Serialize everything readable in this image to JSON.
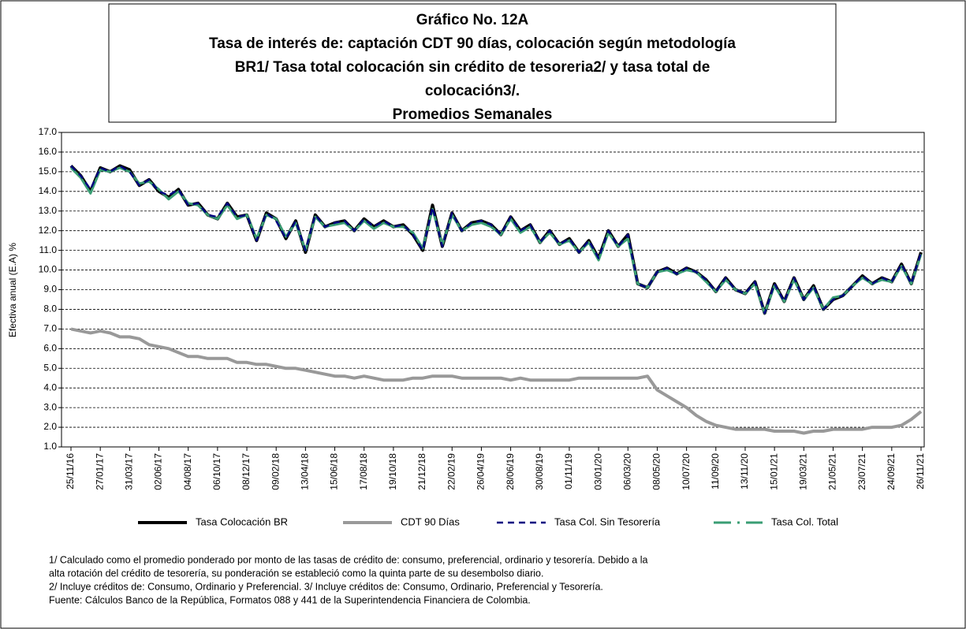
{
  "chart_data": {
    "type": "line",
    "title": [
      "Gráfico No. 12A",
      "Tasa de interés de: captación CDT 90 días,  colocación según metodología",
      "BR1/  Tasa total colocación sin crédito de tesoreria2/ y tasa total de",
      "colocación3/.",
      "Promedios Semanales"
    ],
    "ylabel": "Efectiva anual (E.A) %",
    "ylim": [
      1,
      17
    ],
    "yticks": [
      {
        "value": 1,
        "label": "1.0"
      },
      {
        "value": 2,
        "label": "2.0"
      },
      {
        "value": 3,
        "label": "3.0"
      },
      {
        "value": 4,
        "label": "4.0"
      },
      {
        "value": 5,
        "label": "5.0"
      },
      {
        "value": 6,
        "label": "6.0"
      },
      {
        "value": 7,
        "label": "7.0"
      },
      {
        "value": 8,
        "label": "8.0"
      },
      {
        "value": 9,
        "label": "9.0"
      },
      {
        "value": 10,
        "label": "10.0"
      },
      {
        "value": 11,
        "label": "11.0"
      },
      {
        "value": 12,
        "label": "12.0"
      },
      {
        "value": 13,
        "label": "13.0"
      },
      {
        "value": 14,
        "label": "14.0"
      },
      {
        "value": 15,
        "label": "15.0"
      },
      {
        "value": 16,
        "label": "16.0"
      },
      {
        "value": 17,
        "label": "17.0"
      }
    ],
    "grid": true,
    "categories": [
      "25/11/16",
      null,
      null,
      "27/01/17",
      null,
      null,
      "31/03/17",
      null,
      null,
      "02/06/17",
      null,
      null,
      "04/08/17",
      null,
      null,
      "06/10/17",
      null,
      null,
      "08/12/17",
      null,
      null,
      "09/02/18",
      null,
      null,
      "13/04/18",
      null,
      null,
      "15/06/18",
      null,
      null,
      "17/08/18",
      null,
      null,
      "19/10/18",
      null,
      null,
      "21/12/18",
      null,
      null,
      "22/02/19",
      null,
      null,
      "26/04/19",
      null,
      null,
      "28/06/19",
      null,
      null,
      "30/08/19",
      null,
      null,
      "01/11/19",
      null,
      null,
      "03/01/20",
      null,
      null,
      "06/03/20",
      null,
      null,
      "08/05/20",
      null,
      null,
      "10/07/20",
      null,
      null,
      "11/09/20",
      null,
      null,
      "13/11/20",
      null,
      null,
      "15/01/21",
      null,
      null,
      "19/03/21",
      null,
      null,
      "21/05/21",
      null,
      null,
      "23/07/21",
      null,
      null,
      "24/09/21",
      null,
      null,
      "26/11/21"
    ],
    "series": [
      {
        "name": "Tasa Colocación BR",
        "color": "#000000",
        "values": [
          15.3,
          14.8,
          14.0,
          15.2,
          15.0,
          15.3,
          15.1,
          14.3,
          14.6,
          14.0,
          13.7,
          14.1,
          13.3,
          13.4,
          12.8,
          12.6,
          13.4,
          12.7,
          12.8,
          11.5,
          12.9,
          12.6,
          11.6,
          12.5,
          10.9,
          12.8,
          12.2,
          12.4,
          12.5,
          12.0,
          12.6,
          12.2,
          12.5,
          12.2,
          12.3,
          11.8,
          11.0,
          13.3,
          11.2,
          12.9,
          12.0,
          12.4,
          12.5,
          12.3,
          11.8,
          12.7,
          12.0,
          12.3,
          11.4,
          12.0,
          11.3,
          11.6,
          10.9,
          11.5,
          10.6,
          12.0,
          11.2,
          11.8,
          9.3,
          9.1,
          9.9,
          10.1,
          9.8,
          10.1,
          9.9,
          9.5,
          8.9,
          9.6,
          9.0,
          8.8,
          9.4,
          7.8,
          9.3,
          8.4,
          9.6,
          8.5,
          9.2,
          8.0,
          8.5,
          8.7,
          9.2,
          9.7,
          9.3,
          9.6,
          9.4,
          10.3,
          9.3,
          10.9
        ]
      },
      {
        "name": "CDT 90 Días",
        "color": "#999999",
        "values": [
          7.0,
          6.9,
          6.8,
          6.9,
          6.8,
          6.6,
          6.6,
          6.5,
          6.2,
          6.1,
          6.0,
          5.8,
          5.6,
          5.6,
          5.5,
          5.5,
          5.5,
          5.3,
          5.3,
          5.2,
          5.2,
          5.1,
          5.0,
          5.0,
          4.9,
          4.8,
          4.7,
          4.6,
          4.6,
          4.5,
          4.6,
          4.5,
          4.4,
          4.4,
          4.4,
          4.5,
          4.5,
          4.6,
          4.6,
          4.6,
          4.5,
          4.5,
          4.5,
          4.5,
          4.5,
          4.4,
          4.5,
          4.4,
          4.4,
          4.4,
          4.4,
          4.4,
          4.5,
          4.5,
          4.5,
          4.5,
          4.5,
          4.5,
          4.5,
          4.6,
          3.9,
          3.6,
          3.3,
          3.0,
          2.6,
          2.3,
          2.1,
          2.0,
          1.9,
          1.9,
          1.9,
          1.9,
          1.8,
          1.8,
          1.8,
          1.7,
          1.8,
          1.8,
          1.9,
          1.9,
          1.9,
          1.9,
          2.0,
          2.0,
          2.0,
          2.1,
          2.4,
          2.8
        ]
      },
      {
        "name": "Tasa Col. Sin Tesorería",
        "color": "#000080",
        "values": [
          15.3,
          14.8,
          14.1,
          15.2,
          15.0,
          15.3,
          15.0,
          14.3,
          14.6,
          14.0,
          13.8,
          14.1,
          13.3,
          13.4,
          12.8,
          12.7,
          13.4,
          12.7,
          12.8,
          11.5,
          12.9,
          12.5,
          11.6,
          12.5,
          11.0,
          12.8,
          12.2,
          12.4,
          12.5,
          12.0,
          12.6,
          12.2,
          12.5,
          12.2,
          12.3,
          11.8,
          11.0,
          13.2,
          11.2,
          12.9,
          12.0,
          12.4,
          12.5,
          12.3,
          11.8,
          12.7,
          12.0,
          12.3,
          11.4,
          12.0,
          11.3,
          11.6,
          10.9,
          11.5,
          10.6,
          12.0,
          11.2,
          11.8,
          9.3,
          9.1,
          9.9,
          10.1,
          9.8,
          10.1,
          9.9,
          9.5,
          8.9,
          9.6,
          9.0,
          8.8,
          9.4,
          7.8,
          9.3,
          8.4,
          9.6,
          8.5,
          9.2,
          8.0,
          8.5,
          8.7,
          9.2,
          9.7,
          9.3,
          9.6,
          9.4,
          10.3,
          9.3,
          10.9
        ]
      },
      {
        "name": "Tasa Col. Total",
        "color": "#3a9e74",
        "values": [
          15.2,
          14.7,
          13.9,
          15.1,
          15.0,
          15.2,
          15.0,
          14.4,
          14.5,
          14.1,
          13.6,
          14.0,
          13.4,
          13.3,
          12.8,
          12.6,
          13.3,
          12.6,
          12.8,
          11.6,
          12.8,
          12.6,
          11.7,
          12.4,
          11.0,
          12.7,
          12.2,
          12.3,
          12.4,
          12.0,
          12.5,
          12.1,
          12.4,
          12.2,
          12.2,
          11.9,
          11.1,
          13.1,
          11.3,
          12.8,
          12.0,
          12.3,
          12.4,
          12.2,
          11.8,
          12.6,
          11.9,
          12.2,
          11.4,
          11.9,
          11.3,
          11.5,
          10.9,
          11.4,
          10.5,
          11.9,
          11.2,
          11.6,
          9.3,
          9.1,
          9.9,
          10.0,
          9.8,
          10.0,
          9.9,
          9.4,
          8.9,
          9.5,
          9.0,
          8.8,
          9.3,
          7.8,
          9.2,
          8.4,
          9.5,
          8.5,
          9.1,
          8.0,
          8.6,
          8.7,
          9.2,
          9.6,
          9.3,
          9.5,
          9.4,
          10.2,
          9.3,
          10.8
        ]
      }
    ],
    "footnotes": [
      "1/ Calculado como el promedio ponderado por monto de las tasas de crédito de: consumo, preferencial, ordinario y tesorería.  Debido a la",
      "alta rotación del crédito de tesorería,  su ponderación se estableció como la quinta parte de su desembolso diario.",
      "2/ Incluye créditos de: Consumo, Ordinario y Preferencial.   3/ Incluye créditos de: Consumo, Ordinario, Preferencial y Tesorería.",
      "Fuente: Cálculos Banco de la República, Formatos 088 y 441 de la Superintendencia Financiera de Colombia."
    ]
  }
}
